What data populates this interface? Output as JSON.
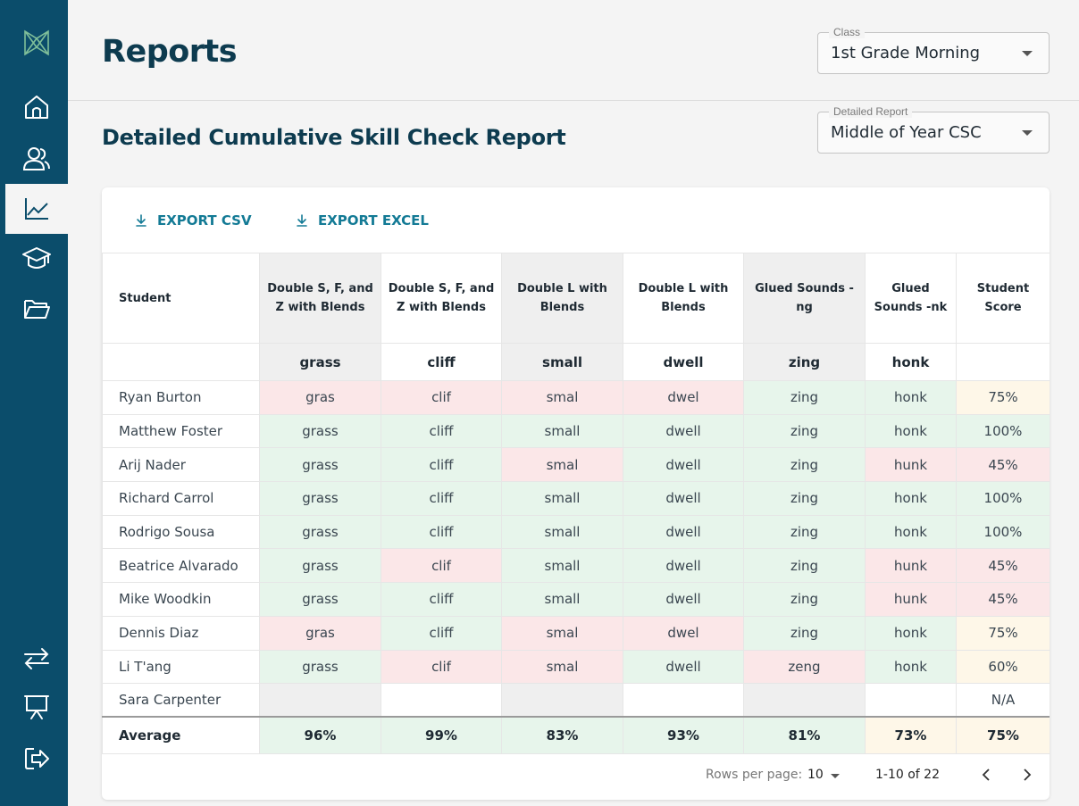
{
  "header": {
    "title": "Reports",
    "class_select": {
      "label": "Class",
      "value": "1st Grade Morning"
    }
  },
  "report": {
    "title": "Detailed Cumulative Skill Check Report",
    "report_select": {
      "label": "Detailed Report",
      "value": "Middle of Year CSC"
    },
    "export_csv": "EXPORT CSV",
    "export_excel": "EXPORT EXCEL"
  },
  "sidebar": {
    "items": [
      {
        "icon": "logo-icon"
      },
      {
        "icon": "home-icon"
      },
      {
        "icon": "users-icon"
      },
      {
        "icon": "chart-icon",
        "active": true
      },
      {
        "icon": "graduation-cap-icon"
      },
      {
        "icon": "folder-icon"
      },
      {
        "icon": "switch-arrows-icon"
      },
      {
        "icon": "presentation-icon"
      },
      {
        "icon": "logout-icon"
      }
    ]
  },
  "table": {
    "student_header": "Student",
    "score_header": "Student Score",
    "columns": [
      {
        "header": "Double S, F, and Z with Blends",
        "word": "grass",
        "average": "96%"
      },
      {
        "header": "Double S, F, and Z with Blends",
        "word": "cliff",
        "average": "99%"
      },
      {
        "header": "Double L with Blends",
        "word": "small",
        "average": "83%"
      },
      {
        "header": "Double L with Blends",
        "word": "dwell",
        "average": "93%"
      },
      {
        "header": "Glued Sounds -ng",
        "word": "zing",
        "average": "81%"
      },
      {
        "header": "Glued Sounds -nk",
        "word": "honk",
        "average": "73%"
      }
    ],
    "rows": [
      {
        "name": "Ryan Burton",
        "cells": [
          "gras",
          "clif",
          "smal",
          "dwel",
          "zing",
          "honk"
        ],
        "states": [
          "r",
          "r",
          "r",
          "r",
          "g",
          "g"
        ],
        "score": "75%",
        "score_state": "y"
      },
      {
        "name": "Matthew Foster",
        "cells": [
          "grass",
          "cliff",
          "small",
          "dwell",
          "zing",
          "honk"
        ],
        "states": [
          "g",
          "g",
          "g",
          "g",
          "g",
          "g"
        ],
        "score": "100%",
        "score_state": "g"
      },
      {
        "name": "Arij Nader",
        "cells": [
          "grass",
          "cliff",
          "smal",
          "dwell",
          "zing",
          "hunk"
        ],
        "states": [
          "g",
          "g",
          "r",
          "g",
          "g",
          "r"
        ],
        "score": "45%",
        "score_state": "r"
      },
      {
        "name": "Richard Carrol",
        "cells": [
          "grass",
          "cliff",
          "small",
          "dwell",
          "zing",
          "honk"
        ],
        "states": [
          "g",
          "g",
          "g",
          "g",
          "g",
          "g"
        ],
        "score": "100%",
        "score_state": "g"
      },
      {
        "name": "Rodrigo Sousa",
        "cells": [
          "grass",
          "cliff",
          "small",
          "dwell",
          "zing",
          "honk"
        ],
        "states": [
          "g",
          "g",
          "g",
          "g",
          "g",
          "g"
        ],
        "score": "100%",
        "score_state": "g"
      },
      {
        "name": "Beatrice Alvarado",
        "cells": [
          "grass",
          "clif",
          "small",
          "dwell",
          "zing",
          "hunk"
        ],
        "states": [
          "g",
          "r",
          "g",
          "g",
          "g",
          "r"
        ],
        "score": "45%",
        "score_state": "r"
      },
      {
        "name": "Mike Woodkin",
        "cells": [
          "grass",
          "cliff",
          "small",
          "dwell",
          "zing",
          "hunk"
        ],
        "states": [
          "g",
          "g",
          "g",
          "g",
          "g",
          "r"
        ],
        "score": "45%",
        "score_state": "r"
      },
      {
        "name": "Dennis Diaz",
        "cells": [
          "gras",
          "cliff",
          "smal",
          "dwel",
          "zing",
          "honk"
        ],
        "states": [
          "r",
          "g",
          "r",
          "r",
          "g",
          "g"
        ],
        "score": "75%",
        "score_state": "y"
      },
      {
        "name": "Li T'ang",
        "cells": [
          "grass",
          "clif",
          "smal",
          "dwell",
          "zeng",
          "honk"
        ],
        "states": [
          "g",
          "r",
          "r",
          "g",
          "r",
          "g"
        ],
        "score": "60%",
        "score_state": "y"
      },
      {
        "name": "Sara Carpenter",
        "cells": [
          "",
          "",
          "",
          "",
          "",
          ""
        ],
        "states": [
          "e",
          "e",
          "e",
          "e",
          "e",
          "e"
        ],
        "score": "N/A",
        "score_state": "e"
      }
    ],
    "average_label": "Average",
    "average_score": "75%"
  },
  "pagination": {
    "rows_per_page_label": "Rows per page:",
    "rows_per_page_value": "10",
    "range": "1-10 of 22"
  },
  "colors": {
    "sidebar": "#0b4d6b",
    "accent": "#137a95",
    "title": "#0d3b4f",
    "correct": "#e7f5eb",
    "incorrect": "#fbe7e8",
    "partial": "#fef7e8"
  }
}
